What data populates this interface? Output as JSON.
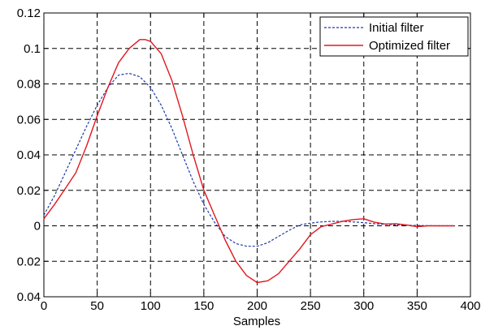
{
  "chart_data": {
    "type": "line",
    "title": "",
    "xlabel": "Samples",
    "ylabel": "",
    "xlim": [
      0,
      400
    ],
    "ylim": [
      -0.04,
      0.12
    ],
    "grid": true,
    "legend_position": "top-right",
    "x_ticks": [
      0,
      50,
      100,
      150,
      200,
      250,
      300,
      350,
      400
    ],
    "x_tick_labels": [
      "0",
      "50",
      "100",
      "150",
      "200",
      "250",
      "300",
      "350",
      "400"
    ],
    "y_ticks": [
      -0.04,
      -0.02,
      0,
      0.02,
      0.04,
      0.06,
      0.08,
      0.1,
      0.12
    ],
    "y_tick_labels": [
      "0.04",
      "0.02",
      "0",
      "0.02",
      "0.04",
      "0.06",
      "0.08",
      "0.1",
      "0.12"
    ],
    "series": [
      {
        "name": "Initial filter",
        "color": "#1f3aa6",
        "style": "dashed",
        "x": [
          0,
          10,
          20,
          30,
          40,
          50,
          60,
          70,
          80,
          90,
          100,
          110,
          120,
          130,
          140,
          150,
          160,
          170,
          180,
          190,
          200,
          210,
          220,
          230,
          240,
          250,
          260,
          270,
          280,
          290,
          300,
          310,
          320,
          330,
          340,
          350,
          360,
          370,
          385
        ],
        "y": [
          0.006,
          0.017,
          0.03,
          0.043,
          0.056,
          0.068,
          0.078,
          0.085,
          0.086,
          0.084,
          0.078,
          0.068,
          0.055,
          0.04,
          0.025,
          0.012,
          0.002,
          -0.006,
          -0.01,
          -0.0115,
          -0.0115,
          -0.0095,
          -0.006,
          -0.0025,
          0.0005,
          0.0015,
          0.0022,
          0.0025,
          0.0025,
          0.0022,
          0.0018,
          0.0012,
          0.0008,
          0.0005,
          0.0003,
          0.0002,
          0.0001,
          0.0,
          0.0
        ]
      },
      {
        "name": "Optimized filter",
        "color": "#e0181f",
        "style": "solid",
        "x": [
          0,
          10,
          20,
          30,
          40,
          50,
          60,
          70,
          80,
          90,
          95,
          100,
          110,
          120,
          130,
          140,
          150,
          160,
          170,
          180,
          190,
          200,
          210,
          220,
          230,
          240,
          250,
          260,
          270,
          280,
          290,
          300,
          310,
          320,
          330,
          340,
          350,
          360,
          370,
          385
        ],
        "y": [
          0.004,
          0.012,
          0.021,
          0.03,
          0.045,
          0.062,
          0.078,
          0.092,
          0.1,
          0.105,
          0.105,
          0.104,
          0.097,
          0.082,
          0.062,
          0.04,
          0.02,
          0.006,
          -0.008,
          -0.02,
          -0.028,
          -0.032,
          -0.031,
          -0.027,
          -0.02,
          -0.013,
          -0.005,
          -0.0005,
          0.001,
          0.0025,
          0.0035,
          0.004,
          0.002,
          0.001,
          0.0012,
          0.0005,
          -0.0005,
          0.0,
          0.0,
          0.0
        ]
      }
    ]
  }
}
